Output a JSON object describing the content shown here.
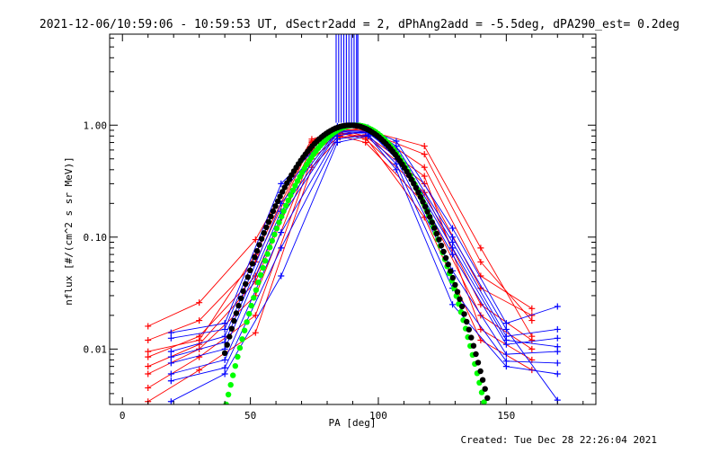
{
  "title": "2021-12-06/10:59:06 - 10:59:53 UT, dSectr2add = 2, dPhAng2add = -5.5deg, dPA290_est=  0.2deg",
  "footer": "Created: Tue Dec 28 22:26:04 2021",
  "colors": {
    "red": "#ff0000",
    "blue": "#0000ff",
    "green": "#00ff00",
    "black": "#000000"
  },
  "chart_data": {
    "type": "line",
    "xlabel": "PA [deg]",
    "ylabel": "nflux [#/(cm^2 s sr MeV)]",
    "xlim": [
      -5,
      185
    ],
    "ylim": [
      0.0032,
      6.5
    ],
    "yscale": "log",
    "grid": false,
    "x_ticks": [
      0,
      50,
      100,
      150
    ],
    "x_tick_labels": [
      "0",
      "50",
      "100",
      "150"
    ],
    "y_ticks": [
      0.01,
      0.1,
      1.0
    ],
    "y_tick_labels": [
      "0.01",
      "0.10",
      "1.00"
    ],
    "series": [
      {
        "color": "red",
        "x": [
          10,
          30,
          52,
          74,
          85,
          95,
          118,
          140,
          160
        ],
        "y": [
          0.016,
          0.026,
          0.095,
          0.75,
          0.88,
          0.95,
          0.42,
          0.045,
          0.023
        ]
      },
      {
        "color": "red",
        "x": [
          10,
          30,
          52,
          74,
          85,
          95,
          118,
          140,
          160
        ],
        "y": [
          0.012,
          0.018,
          0.06,
          0.7,
          0.9,
          0.8,
          0.3,
          0.035,
          0.02
        ]
      },
      {
        "color": "red",
        "x": [
          10,
          30,
          52,
          74,
          85,
          95,
          118,
          140,
          160
        ],
        "y": [
          0.0085,
          0.013,
          0.045,
          0.65,
          0.82,
          0.88,
          0.55,
          0.06,
          0.018
        ]
      },
      {
        "color": "red",
        "x": [
          10,
          30,
          52,
          74,
          85,
          95,
          118,
          140,
          160
        ],
        "y": [
          0.006,
          0.01,
          0.03,
          0.55,
          0.85,
          0.75,
          0.25,
          0.025,
          0.012
        ]
      },
      {
        "color": "red",
        "x": [
          10,
          30,
          52,
          74,
          85,
          95,
          118,
          140,
          160
        ],
        "y": [
          0.0045,
          0.0085,
          0.02,
          0.5,
          0.8,
          0.7,
          0.2,
          0.02,
          0.01
        ]
      },
      {
        "color": "red",
        "x": [
          10,
          30,
          52,
          74,
          85,
          95,
          118,
          140,
          160
        ],
        "y": [
          0.0034,
          0.0065,
          0.014,
          0.42,
          0.78,
          0.82,
          0.35,
          0.015,
          0.008
        ]
      },
      {
        "color": "red",
        "x": [
          10,
          30,
          52,
          74,
          85,
          95,
          118,
          140,
          160
        ],
        "y": [
          0.0095,
          0.012,
          0.07,
          0.72,
          0.92,
          0.9,
          0.65,
          0.08,
          0.013
        ]
      },
      {
        "color": "red",
        "x": [
          10,
          30,
          52,
          74,
          85,
          95,
          118,
          140,
          160
        ],
        "y": [
          0.007,
          0.011,
          0.04,
          0.6,
          0.86,
          0.78,
          0.15,
          0.012,
          0.0065
        ]
      },
      {
        "color": "blue",
        "x": [
          19,
          40,
          62,
          84,
          96,
          107,
          129,
          150,
          170
        ],
        "y": [
          0.014,
          0.017,
          0.3,
          0.98,
          0.92,
          0.72,
          0.12,
          0.017,
          0.024
        ]
      },
      {
        "color": "blue",
        "x": [
          19,
          40,
          62,
          84,
          96,
          107,
          129,
          150,
          170
        ],
        "y": [
          0.0095,
          0.013,
          0.2,
          0.9,
          0.88,
          0.6,
          0.09,
          0.013,
          0.015
        ]
      },
      {
        "color": "blue",
        "x": [
          19,
          40,
          62,
          84,
          96,
          107,
          129,
          150,
          170
        ],
        "y": [
          0.0075,
          0.01,
          0.15,
          0.85,
          0.85,
          0.55,
          0.07,
          0.011,
          0.0125
        ]
      },
      {
        "color": "blue",
        "x": [
          19,
          40,
          62,
          84,
          96,
          107,
          129,
          150,
          170
        ],
        "y": [
          0.006,
          0.008,
          0.11,
          0.8,
          0.9,
          0.5,
          0.05,
          0.009,
          0.0095
        ]
      },
      {
        "color": "blue",
        "x": [
          19,
          40,
          62,
          84,
          96,
          107,
          129,
          150,
          170
        ],
        "y": [
          0.0052,
          0.0068,
          0.08,
          0.75,
          0.82,
          0.45,
          0.035,
          0.0078,
          0.0075
        ]
      },
      {
        "color": "blue",
        "x": [
          19,
          40,
          62,
          84,
          96,
          107,
          129,
          150,
          170
        ],
        "y": [
          0.0034,
          0.006,
          0.045,
          0.7,
          0.8,
          0.4,
          0.025,
          0.007,
          0.006
        ]
      },
      {
        "color": "blue",
        "x": [
          19,
          40,
          62,
          84,
          96,
          107,
          129,
          150,
          170
        ],
        "y": [
          0.0125,
          0.015,
          0.25,
          0.95,
          0.95,
          0.65,
          0.1,
          0.015,
          0.0035
        ]
      },
      {
        "color": "blue",
        "x": [
          19,
          40,
          62,
          84,
          96,
          107,
          129,
          150,
          170
        ],
        "y": [
          0.0085,
          0.0115,
          0.17,
          0.88,
          0.86,
          0.58,
          0.08,
          0.012,
          0.0105
        ]
      }
    ],
    "fits": [
      {
        "color": "green",
        "dot_radius": 3.2,
        "x_range": [
          36,
          157
        ],
        "center": 91,
        "width": 14.9,
        "peak": 1.0
      },
      {
        "color": "black",
        "dot_radius": 3.2,
        "x_range": [
          40,
          159
        ],
        "center": 89,
        "width": 16.0,
        "peak": 1.0
      }
    ],
    "spikes": {
      "color": "blue",
      "x": [
        83.5,
        84.5,
        85.5,
        86.5,
        87.5,
        88.5,
        89.5,
        90.5,
        91.5,
        92
      ],
      "y_from": 1.05
    }
  }
}
